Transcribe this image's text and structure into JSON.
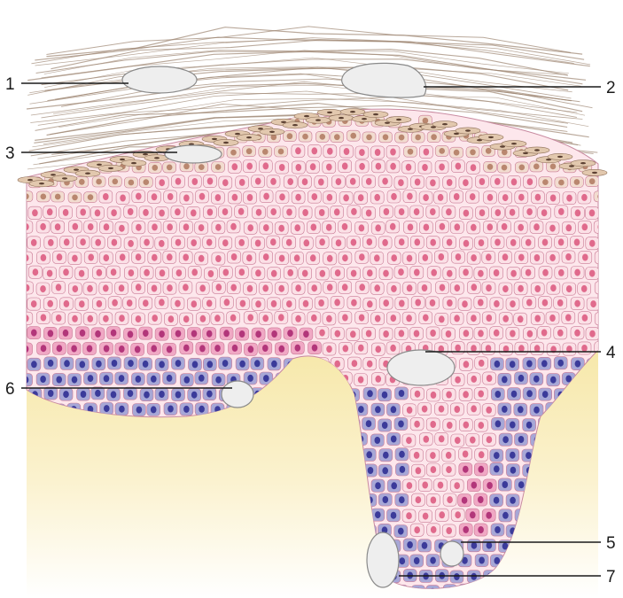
{
  "labels": {
    "l1": "1",
    "l2": "2",
    "l3": "3",
    "l4": "4",
    "l5": "5",
    "l6": "6",
    "l7": "7"
  },
  "colors": {
    "dermis": "#f6e7a6",
    "fibers": "#9c8470",
    "cornified": "#e9d4bf",
    "spinous_cell": "#fbe0e6",
    "spinous_nucleus": "#e06a8c",
    "granular_cell": "#f0a8c4",
    "basal_cell": "#a7a7d6",
    "basal_nucleus": "#3b3b9a",
    "lesion": "#eeeeee"
  }
}
